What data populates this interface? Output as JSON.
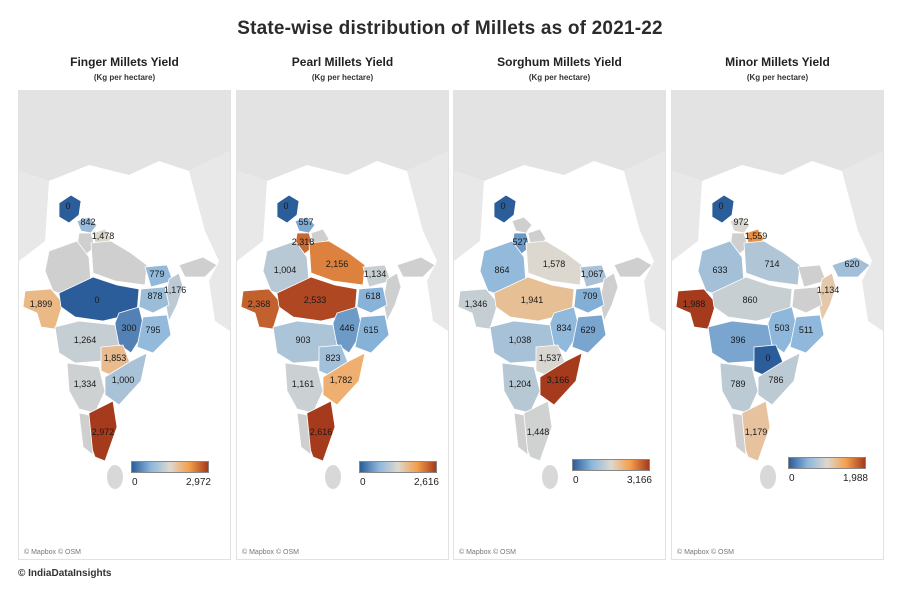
{
  "title": "State-wise distribution of Millets as of 2021-22",
  "footer": "© IndiaDataInsights",
  "colors": {
    "low": "#2b5d9b",
    "mid_blue": "#8db7dc",
    "neutral": "#ddd8cf",
    "mid_orange": "#f4a04c",
    "high": "#a53a1c",
    "land_background": "#e3e3e3",
    "no_data": "#cfcfcf"
  },
  "panels": [
    {
      "title": "Finger Millets Yield",
      "subtitle": "(Kg per hectare)",
      "credit": "© Mapbox © OSM",
      "legend": {
        "min": "0",
        "max": "2,972"
      },
      "labels": [
        {
          "state": "Jammu and Kashmir",
          "text": "0",
          "value": 0
        },
        {
          "state": "Himachal Pradesh",
          "text": "842",
          "value": 842
        },
        {
          "state": "Uttarakhand",
          "text": "1,478",
          "value": 1478
        },
        {
          "state": "Gujarat",
          "text": "1,899",
          "value": 1899
        },
        {
          "state": "Madhya Pradesh",
          "text": "0",
          "value": 0
        },
        {
          "state": "Bihar",
          "text": "779",
          "value": 779
        },
        {
          "state": "Jharkhand",
          "text": "878",
          "value": 878
        },
        {
          "state": "West Bengal",
          "text": "1,176",
          "value": 1176
        },
        {
          "state": "Chhattisgarh",
          "text": "300",
          "value": 300
        },
        {
          "state": "Odisha",
          "text": "795",
          "value": 795
        },
        {
          "state": "Maharashtra",
          "text": "1,264",
          "value": 1264
        },
        {
          "state": "Telangana",
          "text": "1,853",
          "value": 1853
        },
        {
          "state": "Karnataka",
          "text": "1,334",
          "value": 1334
        },
        {
          "state": "Andhra Pradesh",
          "text": "1,000",
          "value": 1000
        },
        {
          "state": "Tamil Nadu",
          "text": "2,972",
          "value": 2972
        }
      ]
    },
    {
      "title": "Pearl Millets Yield",
      "subtitle": "(Kg per hectare)",
      "credit": "© Mapbox © OSM",
      "legend": {
        "min": "0",
        "max": "2,616"
      },
      "labels": [
        {
          "state": "Jammu and Kashmir",
          "text": "0",
          "value": 0
        },
        {
          "state": "Himachal Pradesh",
          "text": "557",
          "value": 557
        },
        {
          "state": "Haryana",
          "text": "2,318",
          "value": 2318
        },
        {
          "state": "Uttar Pradesh",
          "text": "2,156",
          "value": 2156
        },
        {
          "state": "Rajasthan",
          "text": "1,004",
          "value": 1004
        },
        {
          "state": "Bihar",
          "text": "1,134",
          "value": 1134
        },
        {
          "state": "Gujarat",
          "text": "2,368",
          "value": 2368
        },
        {
          "state": "Madhya Pradesh",
          "text": "2,533",
          "value": 2533
        },
        {
          "state": "Jharkhand",
          "text": "618",
          "value": 618
        },
        {
          "state": "Chhattisgarh",
          "text": "446",
          "value": 446
        },
        {
          "state": "Odisha",
          "text": "615",
          "value": 615
        },
        {
          "state": "Maharashtra",
          "text": "903",
          "value": 903
        },
        {
          "state": "Telangana",
          "text": "823",
          "value": 823
        },
        {
          "state": "Karnataka",
          "text": "1,161",
          "value": 1161
        },
        {
          "state": "Andhra Pradesh",
          "text": "1,782",
          "value": 1782
        },
        {
          "state": "Tamil Nadu",
          "text": "2,616",
          "value": 2616
        }
      ]
    },
    {
      "title": "Sorghum Millets Yield",
      "subtitle": "(Kg per hectare)",
      "credit": "© Mapbox © OSM",
      "legend": {
        "min": "0",
        "max": "3,166"
      },
      "labels": [
        {
          "state": "Jammu and Kashmir",
          "text": "0",
          "value": 0
        },
        {
          "state": "Haryana",
          "text": "527",
          "value": 527
        },
        {
          "state": "Rajasthan",
          "text": "864",
          "value": 864
        },
        {
          "state": "Uttar Pradesh",
          "text": "1,578",
          "value": 1578
        },
        {
          "state": "Bihar",
          "text": "1,067",
          "value": 1067
        },
        {
          "state": "Gujarat",
          "text": "1,346",
          "value": 1346
        },
        {
          "state": "Madhya Pradesh",
          "text": "1,941",
          "value": 1941
        },
        {
          "state": "Jharkhand",
          "text": "709",
          "value": 709
        },
        {
          "state": "Chhattisgarh",
          "text": "834",
          "value": 834
        },
        {
          "state": "Odisha",
          "text": "629",
          "value": 629
        },
        {
          "state": "Maharashtra",
          "text": "1,038",
          "value": 1038
        },
        {
          "state": "Telangana",
          "text": "1,537",
          "value": 1537
        },
        {
          "state": "Karnataka",
          "text": "1,204",
          "value": 1204
        },
        {
          "state": "Andhra Pradesh",
          "text": "3,166",
          "value": 3166
        },
        {
          "state": "Tamil Nadu",
          "text": "1,448",
          "value": 1448
        }
      ]
    },
    {
      "title": "Minor Millets Yield",
      "subtitle": "(Kg per hectare)",
      "credit": "© Mapbox © OSM",
      "legend": {
        "min": "0",
        "max": "1,988"
      },
      "labels": [
        {
          "state": "Jammu and Kashmir",
          "text": "0",
          "value": 0
        },
        {
          "state": "Himachal Pradesh",
          "text": "972",
          "value": 972
        },
        {
          "state": "Uttarakhand",
          "text": "1,559",
          "value": 1559
        },
        {
          "state": "Rajasthan",
          "text": "633",
          "value": 633
        },
        {
          "state": "Uttar Pradesh",
          "text": "714",
          "value": 714
        },
        {
          "state": "Assam",
          "text": "620",
          "value": 620
        },
        {
          "state": "West Bengal",
          "text": "1,134",
          "value": 1134
        },
        {
          "state": "Gujarat",
          "text": "1,988",
          "value": 1988
        },
        {
          "state": "Madhya Pradesh",
          "text": "860",
          "value": 860
        },
        {
          "state": "Chhattisgarh",
          "text": "503",
          "value": 503
        },
        {
          "state": "Odisha",
          "text": "511",
          "value": 511
        },
        {
          "state": "Maharashtra",
          "text": "396",
          "value": 396
        },
        {
          "state": "Telangana",
          "text": "0",
          "value": 0
        },
        {
          "state": "Karnataka",
          "text": "789",
          "value": 789
        },
        {
          "state": "Andhra Pradesh",
          "text": "786",
          "value": 786
        },
        {
          "state": "Tamil Nadu",
          "text": "1,179",
          "value": 1179
        }
      ]
    }
  ]
}
